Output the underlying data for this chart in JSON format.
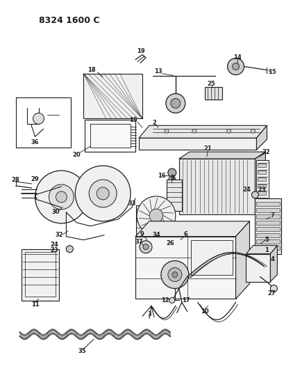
{
  "title": "8324 1600 C",
  "bg_color": "#ffffff",
  "lc": "#1a1a1a",
  "figsize": [
    4.1,
    5.33
  ],
  "dpi": 100
}
